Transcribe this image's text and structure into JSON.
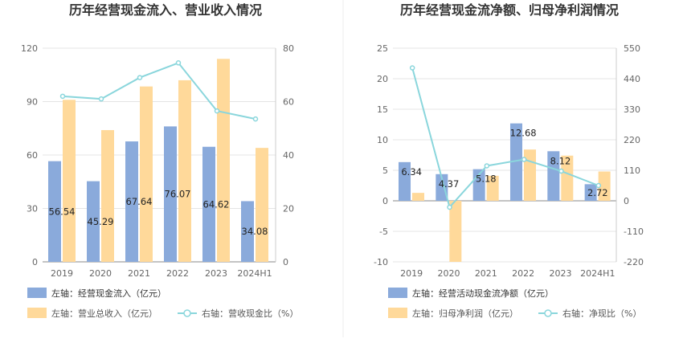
{
  "charts": [
    {
      "title": "历年经营现金流入、营业收入情况",
      "legend": {
        "bar1": "左轴：经营现金流入（亿元）",
        "bar2": "左轴：营业总收入（亿元）",
        "line": "右轴：营收现金比（%）"
      }
    },
    {
      "title": "历年经营现金流净额、归母净利润情况",
      "legend": {
        "bar1": "左轴：经营活动现金流净额（亿元）",
        "bar2": "左轴：归母净利润（亿元）",
        "line": "右轴：净现比（%）"
      }
    }
  ],
  "chart_data": [
    {
      "type": "bar",
      "title": "历年经营现金流入、营业收入情况",
      "categories": [
        "2019",
        "2020",
        "2021",
        "2022",
        "2023",
        "2024H1"
      ],
      "left_axis": {
        "ticks": [
          "0",
          "30",
          "60",
          "90",
          "120"
        ],
        "range": [
          0,
          120
        ]
      },
      "right_axis": {
        "ticks": [
          "0",
          "20",
          "40",
          "60",
          "80"
        ],
        "range": [
          0,
          80
        ]
      },
      "series": [
        {
          "name": "左轴：经营现金流入（亿元）",
          "axis": "left",
          "type": "bar",
          "color": "#8aaadb",
          "values": [
            56.54,
            45.29,
            67.64,
            76.07,
            64.62,
            34.08
          ],
          "labels": [
            "56.54",
            "45.29",
            "67.64",
            "76.07",
            "64.62",
            "34.08"
          ]
        },
        {
          "name": "左轴：营业总收入（亿元）",
          "axis": "left",
          "type": "bar",
          "color": "#ffd99a",
          "values": [
            91,
            74,
            98.5,
            102,
            114,
            64
          ]
        },
        {
          "name": "右轴：营收现金比（%）",
          "axis": "right",
          "type": "line",
          "color": "#8ad6dc",
          "values": [
            62,
            61,
            69,
            74.5,
            56.5,
            53.5
          ]
        }
      ],
      "grid": true,
      "legend_position": "bottom-left"
    },
    {
      "type": "bar",
      "title": "历年经营现金流净额、归母净利润情况",
      "categories": [
        "2019",
        "2020",
        "2021",
        "2022",
        "2023",
        "2024H1"
      ],
      "left_axis": {
        "ticks": [
          "-10",
          "-5",
          "0",
          "5",
          "10",
          "15",
          "20",
          "25"
        ],
        "range": [
          -10,
          25
        ]
      },
      "right_axis": {
        "ticks": [
          "-220",
          "-110",
          "0",
          "110",
          "220",
          "330",
          "440",
          "550"
        ],
        "range": [
          -220,
          550
        ]
      },
      "series": [
        {
          "name": "左轴：经营活动现金流净额（亿元）",
          "axis": "left",
          "type": "bar",
          "color": "#8aaadb",
          "values": [
            6.34,
            4.37,
            5.18,
            12.68,
            8.12,
            2.72
          ],
          "labels": [
            "6.34",
            "4.37",
            "5.18",
            "12.68",
            "8.12",
            "2.72"
          ]
        },
        {
          "name": "左轴：归母净利润（亿元）",
          "axis": "left",
          "type": "bar",
          "color": "#ffd99a",
          "values": [
            1.3,
            -10,
            4.1,
            8.4,
            7.4,
            4.8
          ]
        },
        {
          "name": "右轴：净现比（%）",
          "axis": "right",
          "type": "line",
          "color": "#8ad6dc",
          "values": [
            479,
            -23,
            126,
            149,
            107,
            55
          ]
        }
      ],
      "grid": true,
      "legend_position": "bottom-left"
    }
  ]
}
